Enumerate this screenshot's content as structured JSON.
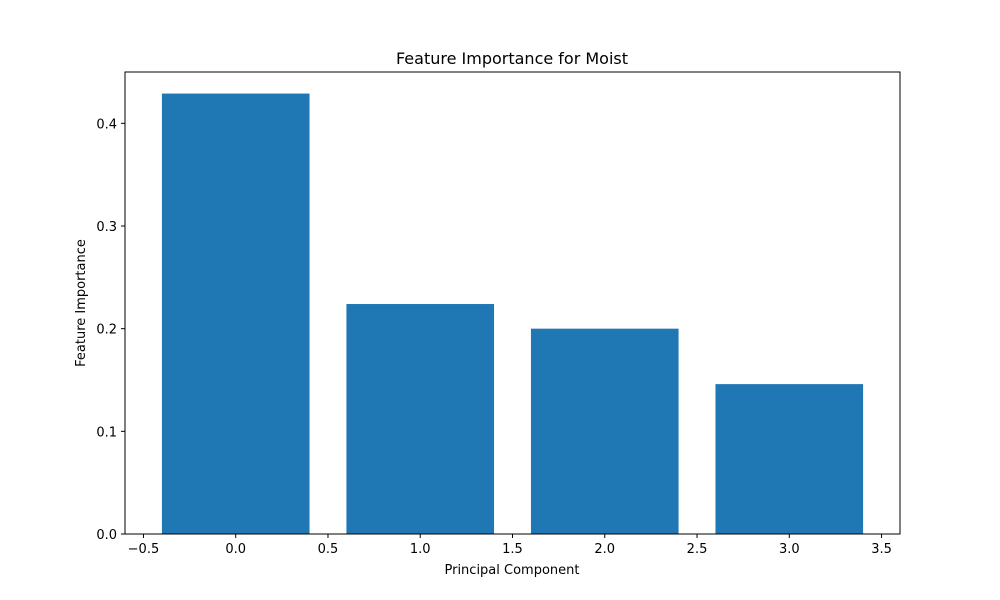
{
  "chart_data": {
    "type": "bar",
    "title": "Feature Importance for Moist",
    "xlabel": "Principal Component",
    "ylabel": "Feature Importance",
    "x": [
      0,
      1,
      2,
      3
    ],
    "values": [
      0.429,
      0.224,
      0.2,
      0.146
    ],
    "bar_width": 0.8,
    "xlim": [
      -0.6,
      3.6
    ],
    "ylim": [
      0,
      0.45
    ],
    "xticks": [
      -0.5,
      0.0,
      0.5,
      1.0,
      1.5,
      2.0,
      2.5,
      3.0,
      3.5
    ],
    "xtick_labels": [
      "−0.5",
      "0.0",
      "0.5",
      "1.0",
      "1.5",
      "2.0",
      "2.5",
      "3.0",
      "3.5"
    ],
    "yticks": [
      0.0,
      0.1,
      0.2,
      0.3,
      0.4
    ],
    "ytick_labels": [
      "0.0",
      "0.1",
      "0.2",
      "0.3",
      "0.4"
    ],
    "grid": false,
    "bar_color": "#1f77b4"
  }
}
